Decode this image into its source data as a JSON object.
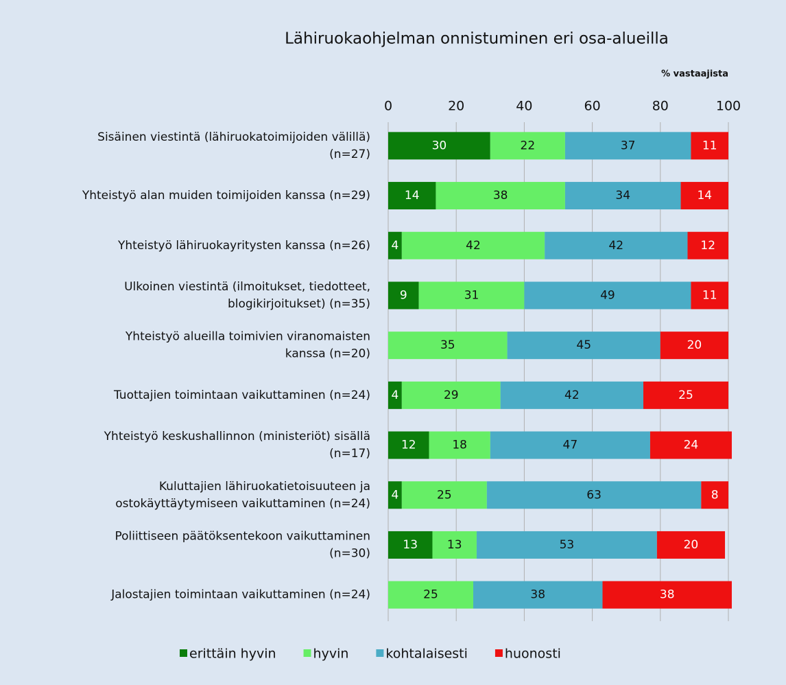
{
  "chart_data": {
    "type": "stacked_barh",
    "title": "Lähiruokaohjelman onnistuminen eri osa-alueilla",
    "x_label": "% vastaajista",
    "categories": [
      "Sisäinen viestintä (lähiruokatoimijoiden välillä)\n(n=27)",
      "Yhteistyö alan muiden toimijoiden kanssa (n=29)",
      "Yhteistyö lähiruokayritysten kanssa (n=26)",
      "Ulkoinen viestintä (ilmoitukset, tiedotteet,\nblogikirjoitukset) (n=35)",
      "Yhteistyö alueilla toimivien viranomaisten\nkanssa (n=20)",
      "Tuottajien toimintaan vaikuttaminen (n=24)",
      "Yhteistyö keskushallinnon (ministeriöt) sisällä\n(n=17)",
      "Kuluttajien lähiruokatietoisuuteen ja\nostokäyttäytymiseen vaikuttaminen (n=24)",
      "Poliittiseen päätöksentekoon vaikuttaminen\n(n=30)",
      "Jalostajien toimintaan vaikuttaminen (n=24)"
    ],
    "series": [
      {
        "name": "erittäin hyvin",
        "color": "#0b7d0b",
        "values": [
          30,
          14,
          4,
          9,
          0,
          4,
          12,
          4,
          13,
          0
        ]
      },
      {
        "name": "hyvin",
        "color": "#66ee66",
        "values": [
          22,
          38,
          42,
          31,
          35,
          29,
          18,
          25,
          13,
          25
        ]
      },
      {
        "name": "kohtalaisesti",
        "color": "#4bacc6",
        "values": [
          37,
          34,
          42,
          49,
          45,
          42,
          47,
          63,
          53,
          38
        ]
      },
      {
        "name": "huonosti",
        "color": "#ee1111",
        "values": [
          11,
          14,
          12,
          11,
          20,
          25,
          24,
          8,
          20,
          38
        ]
      }
    ],
    "xlim": [
      0,
      100
    ],
    "xticks": [
      0,
      20,
      40,
      60,
      80,
      100
    ],
    "grid": true,
    "legend": "bottom"
  }
}
